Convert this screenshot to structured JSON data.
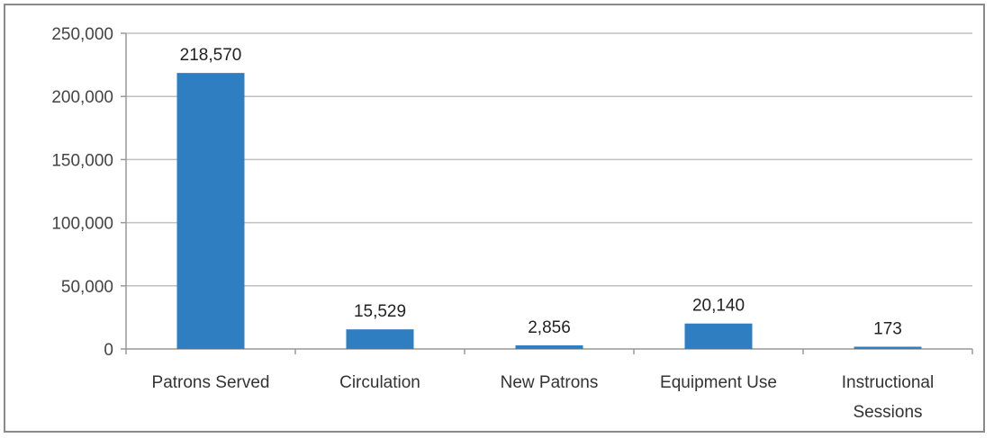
{
  "chart_data": {
    "type": "bar",
    "categories": [
      "Patrons Served",
      "Circulation",
      "New Patrons",
      "Equipment Use",
      "Instructional Sessions"
    ],
    "category_lines": [
      [
        "Patrons Served"
      ],
      [
        "Circulation"
      ],
      [
        "New Patrons"
      ],
      [
        "Equipment Use"
      ],
      [
        "Instructional",
        "Sessions"
      ]
    ],
    "values": [
      218570,
      15529,
      2856,
      20140,
      173
    ],
    "data_labels": [
      "218,570",
      "15,529",
      "2,856",
      "20,140",
      "173"
    ],
    "ylim": [
      0,
      250000
    ],
    "yticks": [
      0,
      50000,
      100000,
      150000,
      200000,
      250000
    ],
    "ytick_labels": [
      "0",
      "50,000",
      "100,000",
      "150,000",
      "200,000",
      "250,000"
    ],
    "grid": true,
    "bar_color": "#2E7EC1",
    "grid_color": "#bfbfbf"
  }
}
